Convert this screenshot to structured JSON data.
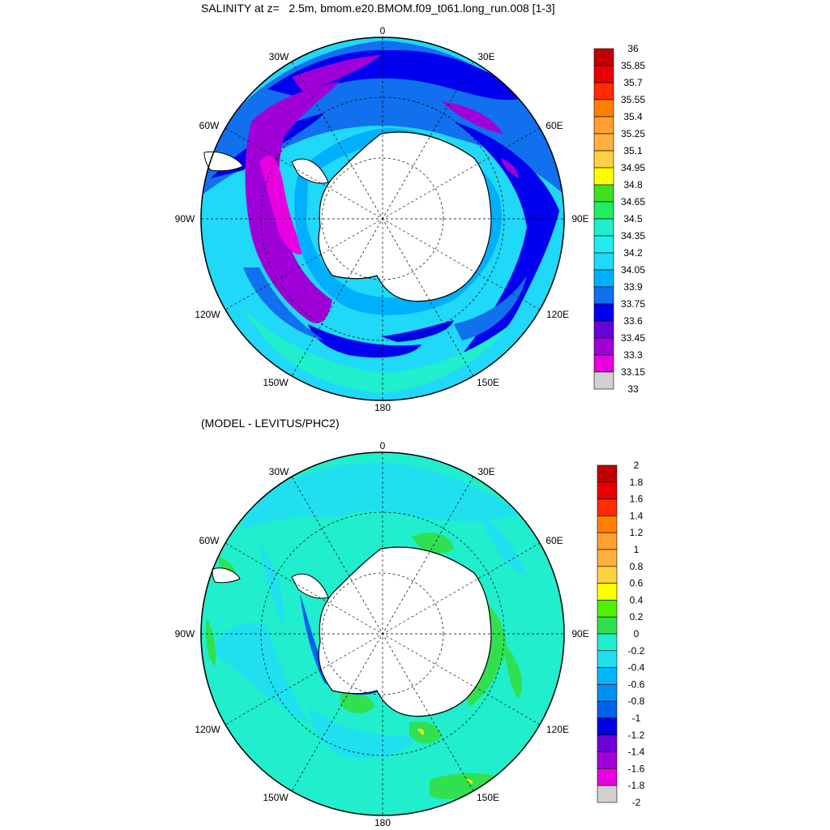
{
  "top": {
    "title": "SALINITY at z=   2.5m, bmom.e20.BMOM.f09_t061.long_run.008 [1-3]",
    "lon_labels": [
      "0",
      "30E",
      "60E",
      "90E",
      "120E",
      "150E",
      "180",
      "150W",
      "120W",
      "90W",
      "60W",
      "30W"
    ],
    "colorbar": {
      "labels": [
        "36",
        "35.85",
        "35.7",
        "35.55",
        "35.4",
        "35.25",
        "35.1",
        "34.95",
        "34.8",
        "34.65",
        "34.5",
        "34.35",
        "34.2",
        "34.05",
        "33.9",
        "33.75",
        "33.6",
        "33.45",
        "33.3",
        "33.15",
        "33"
      ],
      "colors": [
        "#c00000",
        "#e80000",
        "#ff2a00",
        "#ff8000",
        "#ffa030",
        "#ffb040",
        "#ffd040",
        "#ffff00",
        "#40e020",
        "#20ee60",
        "#20eecc",
        "#20eeee",
        "#20d8f8",
        "#00b0ff",
        "#1070ee",
        "#0000ee",
        "#6800d8",
        "#a000d8",
        "#e800e0",
        "#d0d0d0",
        "#6e6e6e"
      ]
    }
  },
  "bottom": {
    "title": "(MODEL - LEVITUS/PHC2)",
    "lon_labels": [
      "0",
      "30E",
      "60E",
      "90E",
      "120E",
      "150E",
      "180",
      "150W",
      "120W",
      "90W",
      "60W",
      "30W"
    ],
    "colorbar": {
      "labels": [
        "2",
        "1.8",
        "1.6",
        "1.4",
        "1.2",
        "1",
        "0.8",
        "0.6",
        "0.4",
        "0.2",
        "0",
        "-0.2",
        "-0.4",
        "-0.6",
        "-0.8",
        "-1",
        "-1.2",
        "-1.4",
        "-1.6",
        "-1.8",
        "-2"
      ],
      "colors": [
        "#c00000",
        "#e80000",
        "#ff2a00",
        "#ff8000",
        "#ffa030",
        "#ffb040",
        "#ffd040",
        "#ffff00",
        "#50f000",
        "#30e050",
        "#20eecc",
        "#20e0f0",
        "#00b8f8",
        "#0090f0",
        "#0060f0",
        "#0000e0",
        "#7000d8",
        "#a000d8",
        "#e800e0",
        "#d0d0d0",
        "#6e6e6e"
      ]
    }
  },
  "colors": {
    "background": "#ffffff",
    "land": "#ffffff",
    "coast": "#000000"
  }
}
